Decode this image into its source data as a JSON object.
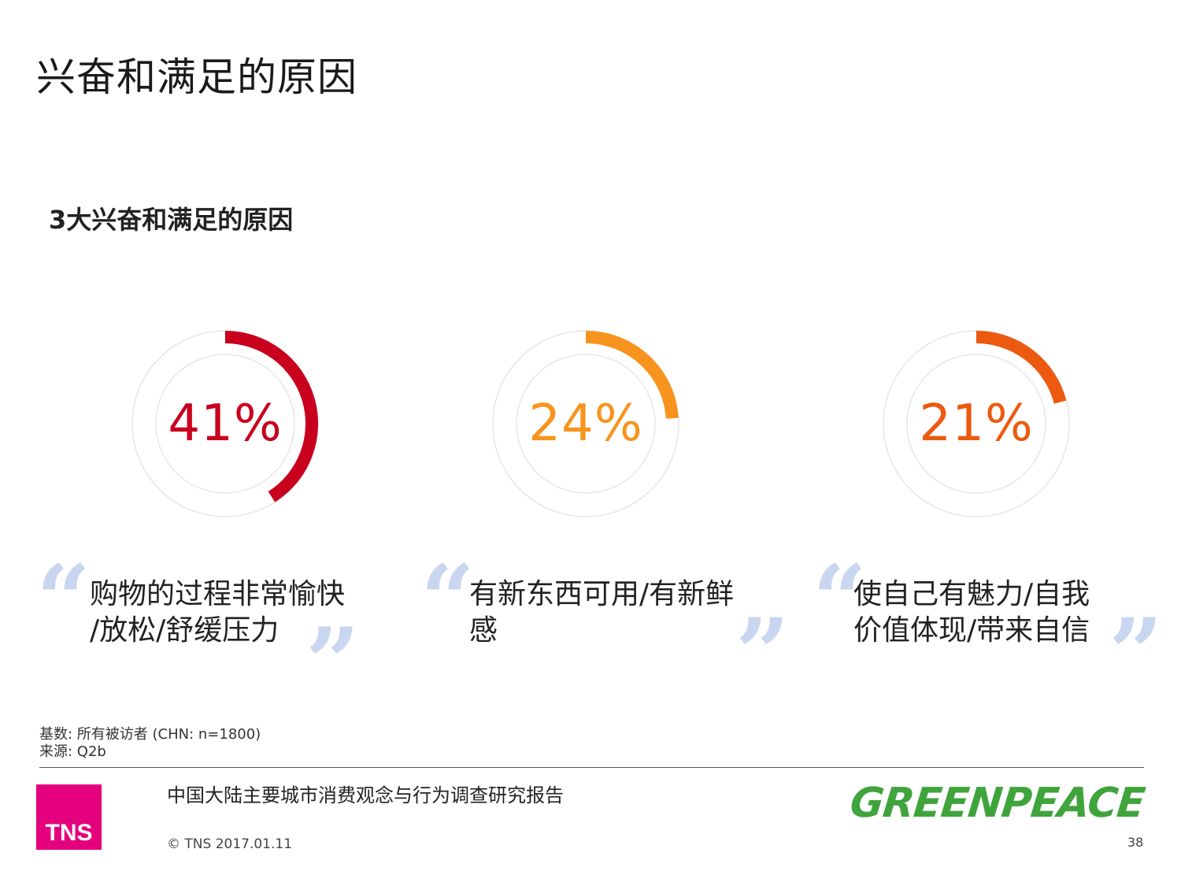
{
  "header": {
    "title": "兴奋和满足的原因",
    "subtitle": "3大兴奋和满足的原因"
  },
  "chart_data": {
    "type": "pie",
    "title": "3大兴奋和满足的原因",
    "series": [
      {
        "value": 41,
        "label": "41%",
        "color": "#c8001e",
        "reason_lines": [
          "购物的过程非常愉快",
          "/放松/舒缓压力"
        ]
      },
      {
        "value": 24,
        "label": "24%",
        "color": "#f7941d",
        "reason_lines": [
          "有新东西可用/有新鲜",
          "感"
        ]
      },
      {
        "value": 21,
        "label": "21%",
        "color": "#ec5a10",
        "reason_lines": [
          "使自己有魅力/自我",
          "价值体现/带来自信"
        ]
      }
    ]
  },
  "colors": {
    "track": "#e6e6e6",
    "quote": "#c9d6ef"
  },
  "footnote": {
    "base": "基数: 所有被访者 (CHN: n=1800)",
    "source": "来源: Q2b"
  },
  "footer": {
    "logo_text": "TNS",
    "report_title": "中国大陆主要城市消费观念与行为调查研究报告",
    "copyright": "© TNS 2017.01.11",
    "partner_logo": "GREENPEACE",
    "page_number": "38"
  }
}
